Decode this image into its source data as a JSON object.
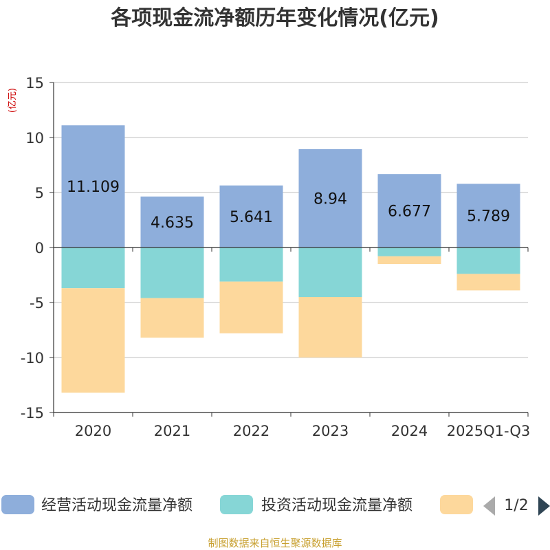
{
  "chart_data": {
    "type": "bar",
    "stacked": true,
    "title": "各项现金流净额历年变化情况(亿元)",
    "ylabel": "(亿元)",
    "xlabel": "",
    "ylim": [
      -15,
      15
    ],
    "yticks": [
      15,
      10,
      5,
      0,
      -5,
      -10,
      -15
    ],
    "categories": [
      "2020",
      "2021",
      "2022",
      "2023",
      "2024",
      "2025Q1-Q3"
    ],
    "series": [
      {
        "name": "经营活动现金流量净额",
        "color": "#8eaedb",
        "values": [
          11.109,
          4.635,
          5.641,
          8.94,
          6.677,
          5.789
        ],
        "labels": [
          "11.109",
          "4.635",
          "5.641",
          "8.94",
          "6.677",
          "5.789"
        ]
      },
      {
        "name": "投资活动现金流量净额",
        "color": "#86d6d6",
        "values": [
          -3.7,
          -4.6,
          -3.1,
          -4.5,
          -0.8,
          -2.4
        ]
      },
      {
        "name": "",
        "color": "#fdd89c",
        "values": [
          -9.5,
          -3.6,
          -4.7,
          -5.5,
          -0.7,
          -1.5
        ]
      }
    ],
    "grid": true,
    "legend_position": "bottom",
    "legend_page": "1/2"
  },
  "footer": {
    "source": "制图数据来自恒生聚源数据库"
  }
}
